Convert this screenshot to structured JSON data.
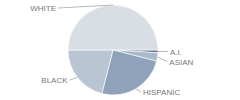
{
  "chart_data": {
    "type": "pie",
    "categories": [
      "A.I.",
      "ASIAN",
      "HISPANIC",
      "BLACK",
      "WHITE"
    ],
    "values": [
      1,
      3,
      25,
      21,
      50
    ],
    "colors": [
      "#5d7a9c",
      "#a9b9cc",
      "#8fa2b9",
      "#b9c5d3",
      "#d9dee5"
    ]
  }
}
